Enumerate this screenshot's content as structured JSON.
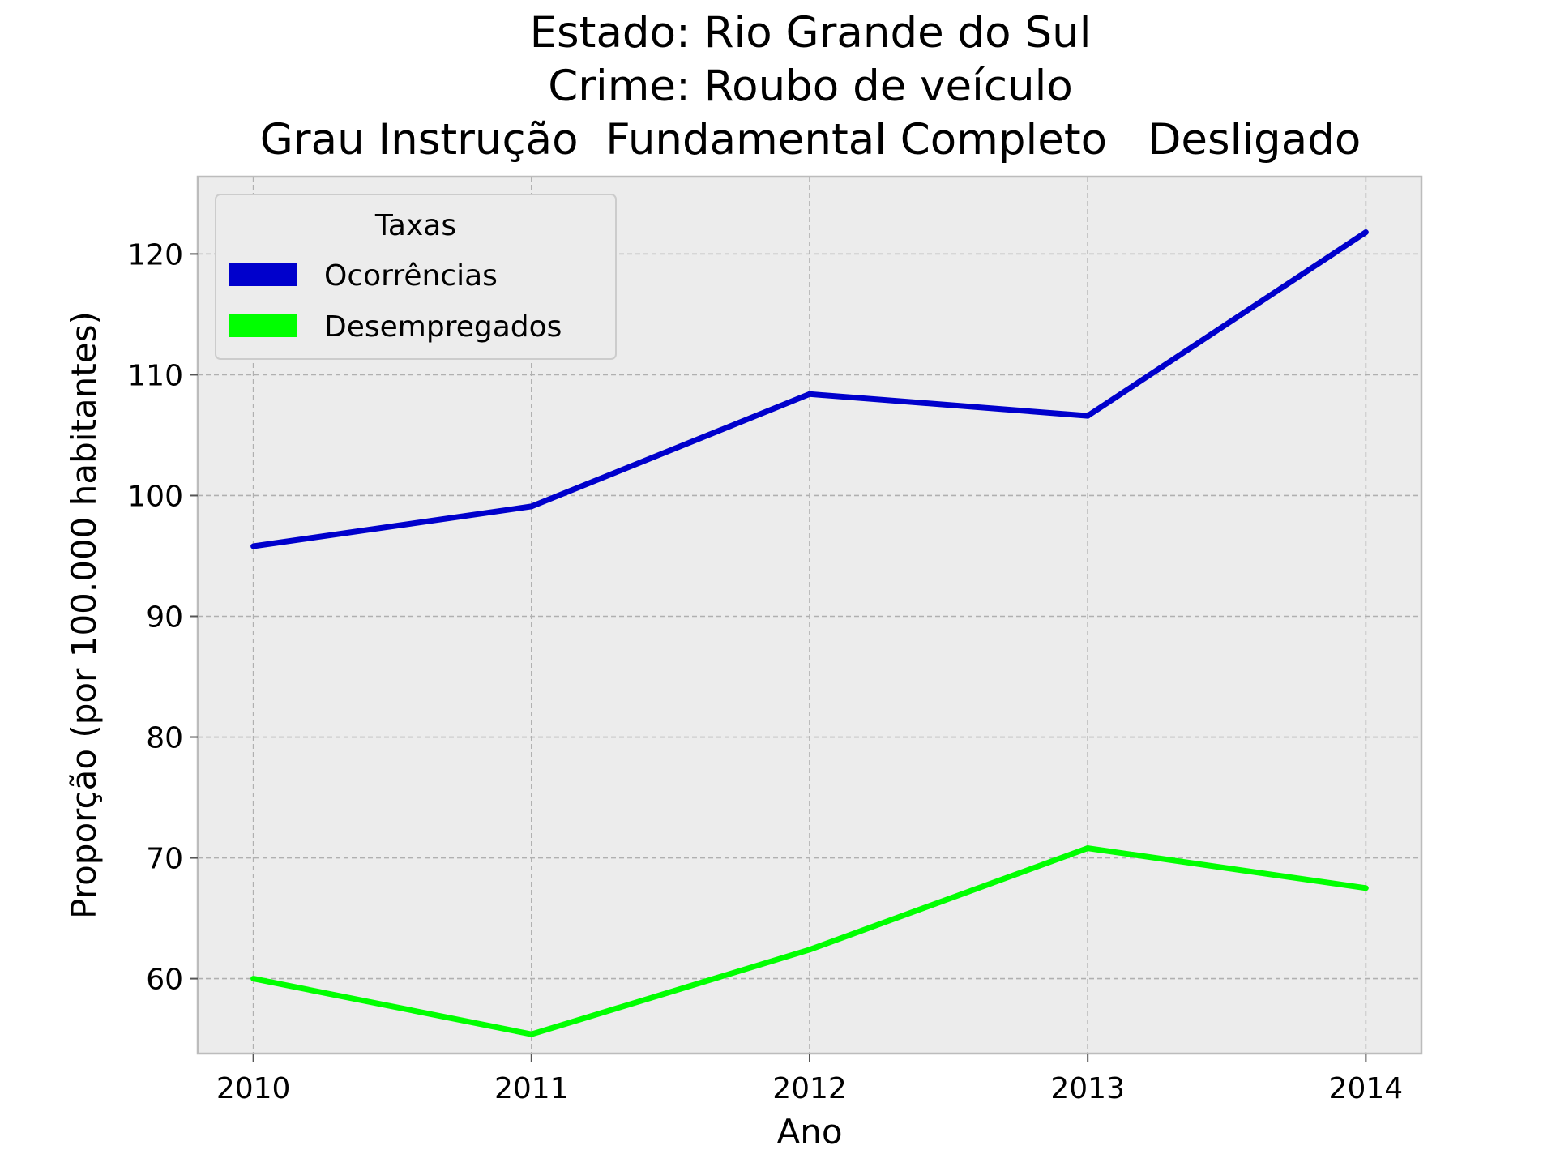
{
  "chart_data": {
    "type": "line",
    "title_lines": [
      "Estado: Rio Grande do Sul",
      "Crime: Roubo de veículo",
      "Grau Instrução  Fundamental Completo   Desligado"
    ],
    "xlabel": "Ano",
    "ylabel": "Proporção (por 100.000 habitantes)",
    "x": [
      "2010",
      "2011",
      "2012",
      "2013",
      "2014"
    ],
    "xlim": [
      2009.8,
      2014.2
    ],
    "ylim": [
      53.8,
      126.4
    ],
    "yticks": [
      60,
      70,
      80,
      90,
      100,
      110,
      120
    ],
    "grid": true,
    "legend": {
      "title": "Taxas",
      "position": "upper-left"
    },
    "series": [
      {
        "name": "Ocorrências",
        "color": "#0000cc",
        "values": [
          95.8,
          99.1,
          108.4,
          106.6,
          121.8
        ]
      },
      {
        "name": "Desempregados",
        "color": "#00ff00",
        "values": [
          60.0,
          55.4,
          62.4,
          70.8,
          67.5
        ]
      }
    ],
    "colors": {
      "plot_background": "#ececec",
      "grid": "#b0b0b0",
      "frame": "#bcbcbc"
    }
  }
}
